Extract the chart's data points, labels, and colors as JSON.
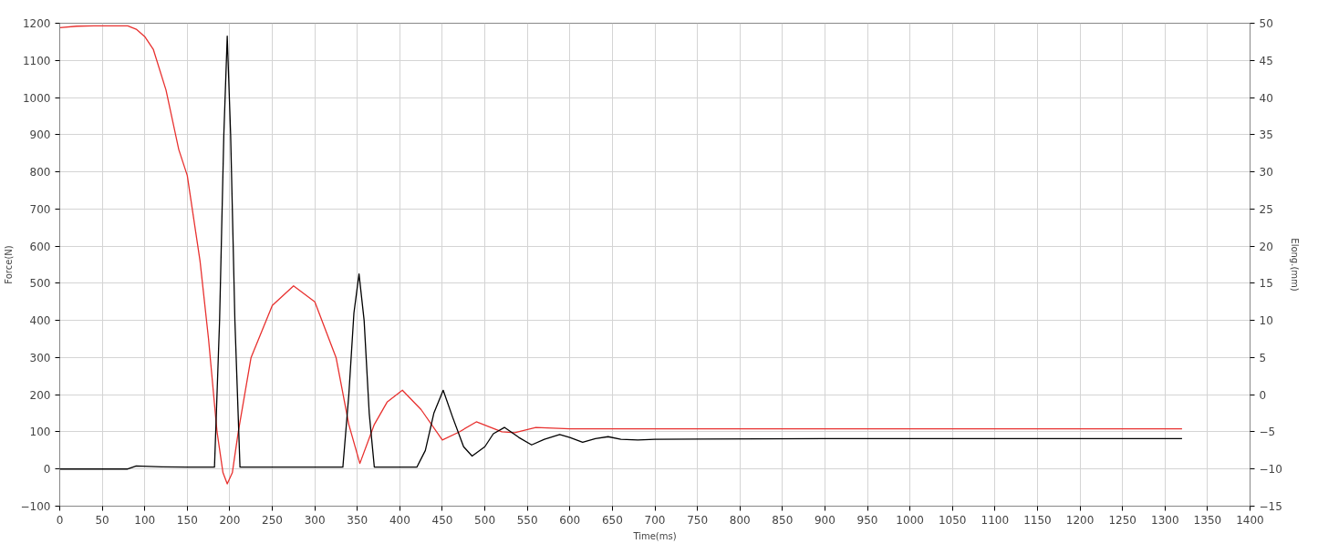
{
  "chart_data": {
    "type": "line",
    "xlabel": "Time(ms)",
    "ylabel": "Force(N)",
    "y2label": "Elong.(mm)",
    "xlim": [
      0,
      1400
    ],
    "ylim": [
      -100,
      1200
    ],
    "y2lim": [
      -15,
      50
    ],
    "xticks": [
      0,
      50,
      100,
      150,
      200,
      250,
      300,
      350,
      400,
      450,
      500,
      550,
      600,
      650,
      700,
      750,
      800,
      850,
      900,
      950,
      1000,
      1050,
      1100,
      1150,
      1200,
      1250,
      1300,
      1350,
      1400
    ],
    "yticks": [
      -100,
      0,
      100,
      200,
      300,
      400,
      500,
      600,
      700,
      800,
      900,
      1000,
      1100,
      1200
    ],
    "y2ticks": [
      -15,
      -10,
      -5,
      0,
      5,
      10,
      15,
      20,
      25,
      30,
      35,
      40,
      45,
      50
    ],
    "grid": true,
    "series": [
      {
        "color": "#e8312f",
        "axis": "y2",
        "x": [
          0,
          20,
          40,
          60,
          80,
          90,
          100,
          110,
          125,
          140,
          150,
          165,
          175,
          185,
          192,
          197,
          203,
          210,
          225,
          250,
          275,
          300,
          325,
          340,
          353,
          370,
          385,
          403,
          425,
          450,
          470,
          490,
          520,
          535,
          560,
          600,
          700,
          800,
          900,
          1000,
          1100,
          1200,
          1320
        ],
        "values": [
          49.4,
          49.6,
          49.65,
          49.65,
          49.65,
          49.2,
          48.2,
          46.5,
          41,
          33,
          29.5,
          18,
          7.5,
          -5,
          -10.5,
          -12,
          -10.5,
          -5,
          5,
          12,
          14.65,
          12.5,
          5,
          -4,
          -9.25,
          -4,
          -1,
          0.6,
          -2,
          -6.1,
          -5,
          -3.65,
          -5,
          -5.1,
          -4.4,
          -4.6,
          -4.6,
          -4.6,
          -4.6,
          -4.6,
          -4.6,
          -4.6,
          -4.6
        ]
      },
      {
        "color": "#000000",
        "axis": "y",
        "x": [
          0,
          40,
          80,
          90,
          120,
          150,
          182,
          188,
          193,
          197,
          201,
          206,
          212,
          250,
          300,
          333,
          340,
          346,
          352,
          358,
          364,
          370,
          420,
          430,
          440,
          451,
          462,
          475,
          485,
          500,
          510,
          523,
          540,
          555,
          570,
          588,
          600,
          615,
          630,
          645,
          660,
          680,
          700,
          900,
          1100,
          1320
        ],
        "values": [
          0,
          0,
          0,
          8,
          6,
          5,
          5,
          400,
          900,
          1165,
          900,
          400,
          5,
          5,
          5,
          5,
          200,
          420,
          525,
          400,
          150,
          5,
          5,
          50,
          150,
          212,
          140,
          60,
          35,
          60,
          95,
          112,
          85,
          65,
          80,
          93,
          85,
          72,
          82,
          87,
          80,
          78,
          80,
          82,
          82,
          82
        ]
      }
    ]
  }
}
